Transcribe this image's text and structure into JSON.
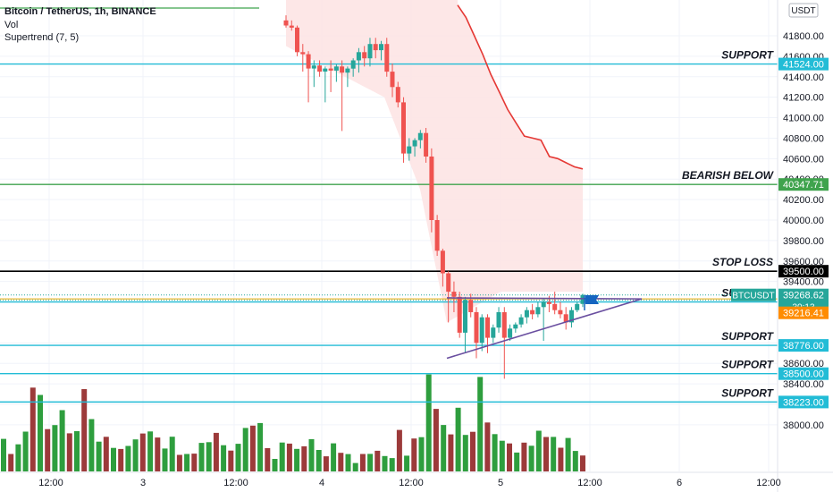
{
  "header": {
    "symbol_line": "Bitcoin / TetherUS, 1h, BINANCE",
    "indicator_vol": "Vol",
    "indicator_supertrend": "Supertrend (7, 5)"
  },
  "currency_badge": "USDT",
  "colors": {
    "up": "#26a69a",
    "down": "#ef5350",
    "vol_up": "#2e9e3e",
    "vol_down": "#9c3a3a",
    "support": "#22bcd6",
    "bearish": "#3fa34d",
    "stop_loss": "#000000",
    "supertrend": "#e53935",
    "fill": "#fde4e4",
    "trendline": "#6a4fa0",
    "last_price_bg": "#26a69a",
    "price_marker_bg": "#ff8c00"
  },
  "chart_data": {
    "type": "candlestick",
    "x_ticks": [
      "12:00",
      "3",
      "12:00",
      "4",
      "12:00",
      "5",
      "12:00",
      "6",
      "12:00"
    ],
    "y_ticks": [
      "41800.00",
      "41600.00",
      "41400.00",
      "41200.00",
      "41000.00",
      "40800.00",
      "40600.00",
      "40400.00",
      "40200.00",
      "40000.00",
      "39800.00",
      "39600.00",
      "39400.00",
      "39200.00",
      "38800.00",
      "38600.00",
      "38400.00",
      "38200.00",
      "38000.00"
    ],
    "y_range": [
      37990,
      41900
    ],
    "levels": [
      {
        "name": "SUPPORT",
        "value": 41524.0,
        "label": "41524.00",
        "kind": "support"
      },
      {
        "name": "BEARISH BELOW",
        "value": 40347.71,
        "label": "40347.71",
        "kind": "bearish"
      },
      {
        "name": "STOP LOSS",
        "value": 39500.0,
        "label": "39500.00",
        "kind": "stop"
      },
      {
        "name": "SUPPORT",
        "value": 39200.0,
        "label": "39200.00",
        "kind": "support"
      },
      {
        "name": "SUPPORT",
        "value": 38776.0,
        "label": "38776.00",
        "kind": "support"
      },
      {
        "name": "SUPPORT",
        "value": 38500.0,
        "label": "38500.00",
        "kind": "support"
      },
      {
        "name": "SUPPORT",
        "value": 38223.0,
        "label": "38223.00",
        "kind": "support"
      }
    ],
    "last_price": {
      "symbol": "BTCUSDT",
      "value": 39268.62,
      "label": "39268.62",
      "countdown": "30:13"
    },
    "marker_price": {
      "value": 39216.41,
      "label": "39216.41"
    },
    "candles": [
      {
        "o": 41950,
        "h": 42000,
        "l": 41880,
        "c": 41900
      },
      {
        "o": 41900,
        "h": 41950,
        "l": 41850,
        "c": 41880
      },
      {
        "o": 41880,
        "h": 41900,
        "l": 41600,
        "c": 41640
      },
      {
        "o": 41640,
        "h": 41720,
        "l": 41450,
        "c": 41620
      },
      {
        "o": 41620,
        "h": 41650,
        "l": 41150,
        "c": 41480
      },
      {
        "o": 41480,
        "h": 41560,
        "l": 41300,
        "c": 41510
      },
      {
        "o": 41510,
        "h": 41560,
        "l": 41400,
        "c": 41450
      },
      {
        "o": 41450,
        "h": 41500,
        "l": 41150,
        "c": 41480
      },
      {
        "o": 41480,
        "h": 41560,
        "l": 41250,
        "c": 41460
      },
      {
        "o": 41460,
        "h": 41520,
        "l": 41350,
        "c": 41500
      },
      {
        "o": 41500,
        "h": 41560,
        "l": 40870,
        "c": 41440
      },
      {
        "o": 41440,
        "h": 41500,
        "l": 41300,
        "c": 41480
      },
      {
        "o": 41480,
        "h": 41580,
        "l": 41400,
        "c": 41560
      },
      {
        "o": 41560,
        "h": 41680,
        "l": 41440,
        "c": 41640
      },
      {
        "o": 41640,
        "h": 41700,
        "l": 41500,
        "c": 41580
      },
      {
        "o": 41580,
        "h": 41780,
        "l": 41500,
        "c": 41720
      },
      {
        "o": 41720,
        "h": 41780,
        "l": 41580,
        "c": 41660
      },
      {
        "o": 41660,
        "h": 41750,
        "l": 41560,
        "c": 41720
      },
      {
        "o": 41720,
        "h": 41780,
        "l": 41400,
        "c": 41450
      },
      {
        "o": 41450,
        "h": 41530,
        "l": 41200,
        "c": 41300
      },
      {
        "o": 41300,
        "h": 41350,
        "l": 41100,
        "c": 41150
      },
      {
        "o": 41150,
        "h": 41200,
        "l": 40560,
        "c": 40650
      },
      {
        "o": 40650,
        "h": 40800,
        "l": 40580,
        "c": 40720
      },
      {
        "o": 40720,
        "h": 40800,
        "l": 40620,
        "c": 40780
      },
      {
        "o": 40780,
        "h": 40880,
        "l": 40700,
        "c": 40850
      },
      {
        "o": 40850,
        "h": 40900,
        "l": 40560,
        "c": 40620
      },
      {
        "o": 40620,
        "h": 40700,
        "l": 39880,
        "c": 40000
      },
      {
        "o": 40000,
        "h": 40050,
        "l": 39650,
        "c": 39700
      },
      {
        "o": 39700,
        "h": 39720,
        "l": 39350,
        "c": 39480
      },
      {
        "o": 39480,
        "h": 39500,
        "l": 39000,
        "c": 39300
      },
      {
        "o": 39300,
        "h": 39400,
        "l": 39100,
        "c": 39250
      },
      {
        "o": 39250,
        "h": 39300,
        "l": 38850,
        "c": 38900
      },
      {
        "o": 38900,
        "h": 39250,
        "l": 38700,
        "c": 39220
      },
      {
        "o": 39220,
        "h": 39280,
        "l": 39050,
        "c": 39100
      },
      {
        "o": 39100,
        "h": 39150,
        "l": 38650,
        "c": 38800
      },
      {
        "o": 38800,
        "h": 39080,
        "l": 38720,
        "c": 39050
      },
      {
        "o": 39050,
        "h": 39080,
        "l": 38700,
        "c": 38850
      },
      {
        "o": 38850,
        "h": 38980,
        "l": 38800,
        "c": 38950
      },
      {
        "o": 38950,
        "h": 39150,
        "l": 38900,
        "c": 39100
      },
      {
        "o": 39100,
        "h": 39150,
        "l": 38450,
        "c": 38850
      },
      {
        "o": 38850,
        "h": 38980,
        "l": 38820,
        "c": 38940
      },
      {
        "o": 38940,
        "h": 39000,
        "l": 38900,
        "c": 38980
      },
      {
        "o": 38980,
        "h": 39080,
        "l": 38950,
        "c": 39050
      },
      {
        "o": 39050,
        "h": 39150,
        "l": 38990,
        "c": 39120
      },
      {
        "o": 39120,
        "h": 39180,
        "l": 39030,
        "c": 39080
      },
      {
        "o": 39080,
        "h": 39200,
        "l": 39050,
        "c": 39150
      },
      {
        "o": 39150,
        "h": 39230,
        "l": 38820,
        "c": 39200
      },
      {
        "o": 39200,
        "h": 39260,
        "l": 39100,
        "c": 39180
      },
      {
        "o": 39180,
        "h": 39300,
        "l": 39080,
        "c": 39120
      },
      {
        "o": 39120,
        "h": 39200,
        "l": 39040,
        "c": 39080
      },
      {
        "o": 39080,
        "h": 39150,
        "l": 38930,
        "c": 39000
      },
      {
        "o": 39000,
        "h": 39150,
        "l": 38950,
        "c": 39120
      },
      {
        "o": 39120,
        "h": 39200,
        "l": 39100,
        "c": 39180
      },
      {
        "o": 39180,
        "h": 39280,
        "l": 39150,
        "c": 39268.62
      }
    ],
    "volume": [
      0.4,
      0.15,
      0.3,
      0.35,
      0.85,
      0.7,
      0.4,
      0.45,
      0.55,
      0.4,
      0.35,
      0.95,
      0.45,
      0.35,
      0.3,
      0.25,
      0.2,
      0.25,
      0.3,
      0.35,
      0.4,
      0.3,
      0.25,
      0.3,
      0.2,
      0.15,
      0.2,
      0.25,
      0.3,
      0.35,
      0.25,
      0.2,
      0.25,
      0.45,
      0.4,
      0.55,
      0.2,
      0.15,
      0.25,
      0.3,
      0.2,
      0.25,
      0.3,
      0.2,
      0.15,
      0.25,
      0.2,
      0.15,
      0.1,
      0.15,
      0.2,
      0.18,
      0.16,
      0.12
    ],
    "supertrend": [
      42100,
      41980,
      41800,
      41620,
      41420,
      41250,
      41080,
      40950,
      40820,
      40800,
      40780,
      40620,
      40600,
      40560,
      40520,
      40500
    ]
  }
}
